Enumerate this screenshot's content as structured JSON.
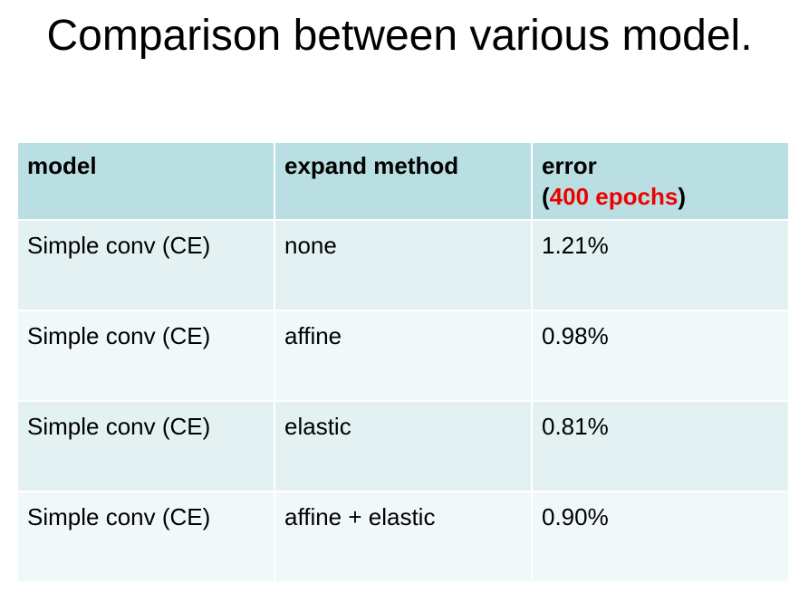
{
  "slide": {
    "title": "Comparison between various model."
  },
  "table": {
    "headers": {
      "model": "model",
      "expand_method": "expand method",
      "error": "error",
      "error_note_open": "(",
      "error_note": "400 epochs",
      "error_note_close": ")"
    },
    "rows": [
      {
        "model": "Simple conv (CE)",
        "expand_method": "none",
        "error": "1.21%"
      },
      {
        "model": "Simple conv (CE)",
        "expand_method": "affine",
        "error": "0.98%"
      },
      {
        "model": "Simple conv (CE)",
        "expand_method": "elastic",
        "error": "0.81%"
      },
      {
        "model": "Simple conv (CE)",
        "expand_method": "affine + elastic",
        "error": "0.90%"
      }
    ]
  },
  "colors": {
    "header_bg": "#b9dfe3",
    "row_bg_odd": "#e4f1f3",
    "row_bg_even": "#f1f8fa",
    "highlight": "#ee0000"
  }
}
